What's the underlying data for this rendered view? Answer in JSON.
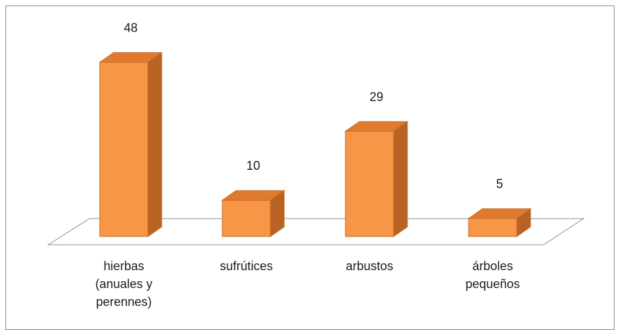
{
  "chart_data": {
    "type": "bar",
    "categories": [
      [
        "hierbas",
        "(anuales y",
        "perennes)"
      ],
      [
        "sufrútices"
      ],
      [
        "arbustos"
      ],
      [
        "árboles",
        "pequeños"
      ]
    ],
    "values": [
      48,
      10,
      29,
      5
    ],
    "ylim": [
      0,
      50
    ],
    "grid": false,
    "legend": "none",
    "colors": {
      "front": "#f79646",
      "top": "#e07a2e",
      "side": "#b86323",
      "edge": "#c86c29",
      "floor_stroke": "#8c8c8c"
    }
  }
}
